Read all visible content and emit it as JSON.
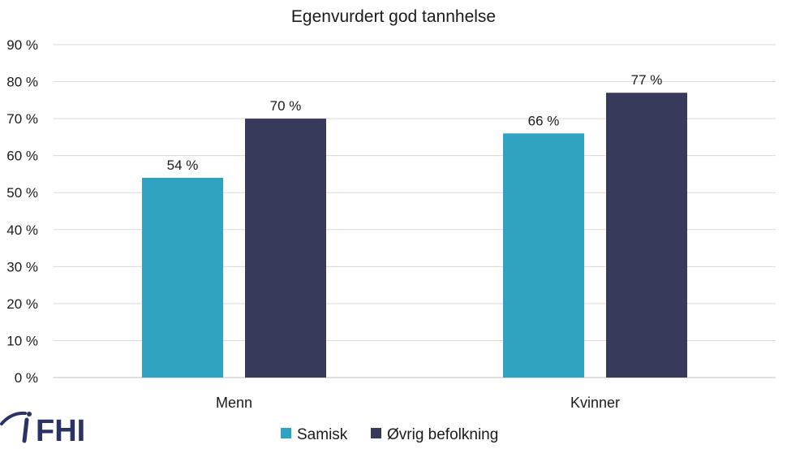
{
  "logo": {
    "text": "FHI",
    "icon": "fhi-person-icon",
    "color": "#2b3264"
  },
  "chart_data": {
    "type": "bar",
    "title": "Egenvurdert god tannhelse",
    "xlabel": "",
    "ylabel": "",
    "categories": [
      "Menn",
      "Kvinner"
    ],
    "ylim": [
      0,
      90
    ],
    "ytick_step": 10,
    "ytick_labels": [
      "0 %",
      "10 %",
      "20 %",
      "30 %",
      "40 %",
      "50 %",
      "60 %",
      "70 %",
      "80 %",
      "90 %"
    ],
    "grid": true,
    "legend": "bottom",
    "series": [
      {
        "name": "Samisk",
        "values": [
          54,
          66
        ],
        "labels": [
          "54 %",
          "66 %"
        ],
        "color": "#2fa3c1"
      },
      {
        "name": "Øvrig befolkning",
        "values": [
          70,
          77
        ],
        "labels": [
          "70 %",
          "77 %"
        ],
        "color": "#383a5c"
      }
    ]
  }
}
